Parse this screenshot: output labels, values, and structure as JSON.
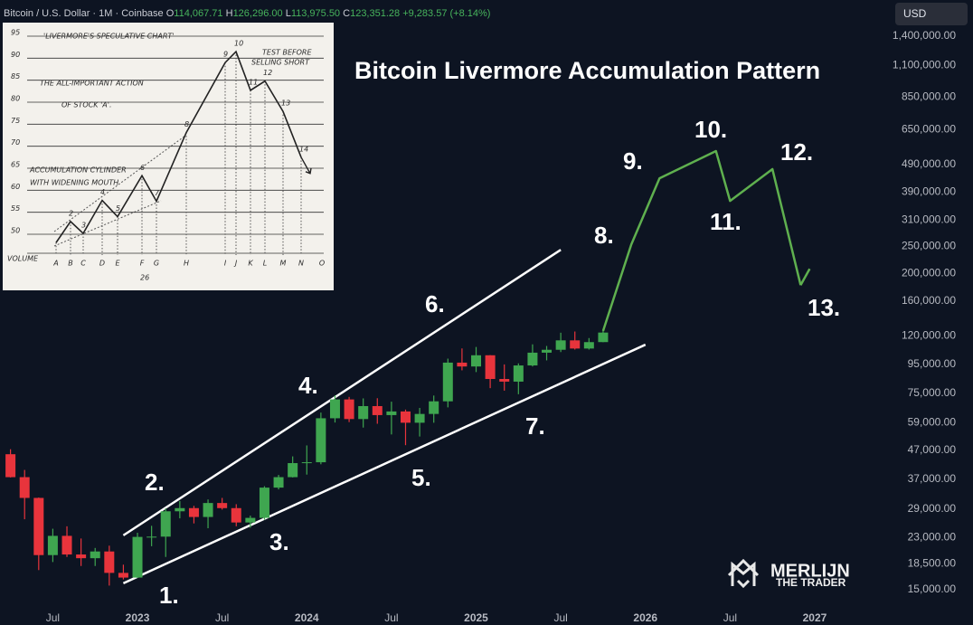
{
  "header": {
    "symbol": "Bitcoin / U.S. Dollar · 1M · Coinbase",
    "ohlc": [
      {
        "key": "O",
        "text": "114,067.71"
      },
      {
        "key": "H",
        "text": "126,296.00"
      },
      {
        "key": "L",
        "text": "113,975.50"
      },
      {
        "key": "C",
        "text": "123,351.28"
      }
    ],
    "change": "+9,283.57 (+8.14%)",
    "currency": "USD"
  },
  "chart_data": {
    "type": "candlestick",
    "title": "Bitcoin Livermore Accumulation Pattern",
    "log_scale": true,
    "grid": false,
    "up_color": "#3fa650",
    "down_color": "#e8343c",
    "x": [
      "2022-04",
      "2022-05",
      "2022-06",
      "2022-07",
      "2022-08",
      "2022-09",
      "2022-10",
      "2022-11",
      "2022-12",
      "2023-01",
      "2023-02",
      "2023-03",
      "2023-04",
      "2023-05",
      "2023-06",
      "2023-07",
      "2023-08",
      "2023-09",
      "2023-10",
      "2023-11",
      "2023-12",
      "2024-01",
      "2024-02",
      "2024-03",
      "2024-04",
      "2024-05",
      "2024-06",
      "2024-07",
      "2024-08",
      "2024-09",
      "2024-10",
      "2024-11",
      "2024-12",
      "2025-01",
      "2025-02",
      "2025-03",
      "2025-04",
      "2025-05",
      "2025-06",
      "2025-07",
      "2025-08",
      "2025-09",
      "2025-10"
    ],
    "open": [
      45500,
      37700,
      31800,
      19900,
      23300,
      20000,
      19400,
      20500,
      17200,
      16550,
      23100,
      23150,
      28500,
      29250,
      27200,
      30500,
      29250,
      26000,
      27000,
      34600,
      37700,
      42300,
      42600,
      61100,
      71300,
      60700,
      67500,
      62700,
      64600,
      58900,
      63300,
      70200,
      96400,
      93400,
      102400,
      84300,
      82500,
      94200,
      104600,
      107100,
      115700,
      108200,
      114067.71
    ],
    "high": [
      47400,
      40000,
      31900,
      24700,
      25200,
      22800,
      21100,
      21500,
      18400,
      23900,
      25300,
      29200,
      31000,
      29800,
      31400,
      31800,
      30200,
      27500,
      35000,
      38400,
      44700,
      48900,
      64000,
      73800,
      72800,
      71900,
      72000,
      70000,
      65600,
      66500,
      73600,
      99600,
      108300,
      109600,
      102500,
      95000,
      95800,
      112000,
      110500,
      123200,
      124400,
      117900,
      126296
    ],
    "low": [
      37600,
      26700,
      17600,
      18800,
      19600,
      18200,
      18200,
      15500,
      16300,
      16500,
      21400,
      19600,
      26900,
      25800,
      24800,
      28900,
      25200,
      24900,
      26600,
      34100,
      37600,
      38500,
      41900,
      59000,
      59200,
      56600,
      58400,
      53500,
      49000,
      52600,
      58900,
      66800,
      90500,
      89200,
      78200,
      76600,
      74400,
      93400,
      98200,
      105100,
      107300,
      107300,
      113975.5
    ],
    "close": [
      37700,
      31800,
      19900,
      23300,
      20000,
      19400,
      20500,
      17200,
      16550,
      23100,
      23150,
      28500,
      29250,
      27200,
      30500,
      29250,
      26000,
      27000,
      34600,
      37700,
      42300,
      42600,
      61100,
      71300,
      60700,
      67500,
      62700,
      64600,
      58900,
      63300,
      70200,
      96400,
      93400,
      102400,
      84300,
      82500,
      94200,
      104600,
      107100,
      115700,
      108200,
      114050,
      123351.28
    ],
    "projection": {
      "color": "#5fb04f",
      "x": [
        "2025-10",
        "2025-12",
        "2026-02",
        "2026-06",
        "2026-07",
        "2026-10",
        "2026-12"
      ],
      "values": [
        125000,
        254000,
        437000,
        546000,
        363000,
        471000,
        182000
      ]
    },
    "trendlines": [
      {
        "color": "#ffffff",
        "x": [
          "2022-12",
          "2025-07"
        ],
        "values": [
          23400,
          243000
        ]
      },
      {
        "color": "#ffffff",
        "x": [
          "2022-12",
          "2026-01"
        ],
        "values": [
          15800,
          111700
        ]
      }
    ],
    "annotations": [
      "1.",
      "2.",
      "3.",
      "4.",
      "5.",
      "6.",
      "7.",
      "8.",
      "9.",
      "10.",
      "11.",
      "12.",
      "13."
    ],
    "xlim": [
      "2022-03",
      "2027-06"
    ],
    "xticks": [
      {
        "value": "2022-07",
        "label": "Jul"
      },
      {
        "value": "2023-01",
        "label": "2023"
      },
      {
        "value": "2023-07",
        "label": "Jul"
      },
      {
        "value": "2024-01",
        "label": "2024"
      },
      {
        "value": "2024-07",
        "label": "Jul"
      },
      {
        "value": "2025-01",
        "label": "2025"
      },
      {
        "value": "2025-07",
        "label": "Jul"
      },
      {
        "value": "2026-01",
        "label": "2026"
      },
      {
        "value": "2026-07",
        "label": "Jul"
      },
      {
        "value": "2027-01",
        "label": "2027"
      }
    ],
    "ylim": [
      11220,
      1884000
    ],
    "yticks": [
      {
        "value": 1400000,
        "label": "1,400,000.00"
      },
      {
        "value": 1100000,
        "label": "1,100,000.00"
      },
      {
        "value": 850000,
        "label": "850,000.00"
      },
      {
        "value": 650000,
        "label": "650,000.00"
      },
      {
        "value": 490000,
        "label": "490,000.00"
      },
      {
        "value": 390000,
        "label": "390,000.00"
      },
      {
        "value": 310000,
        "label": "310,000.00"
      },
      {
        "value": 250000,
        "label": "250,000.00"
      },
      {
        "value": 200000,
        "label": "200,000.00"
      },
      {
        "value": 160000,
        "label": "160,000.00"
      },
      {
        "value": 120000,
        "label": "120,000.00"
      },
      {
        "value": 95000,
        "label": "95,000.00"
      },
      {
        "value": 75000,
        "label": "75,000.00"
      },
      {
        "value": 59000,
        "label": "59,000.00"
      },
      {
        "value": 47000,
        "label": "47,000.00"
      },
      {
        "value": 37000,
        "label": "37,000.00"
      },
      {
        "value": 29000,
        "label": "29,000.00"
      },
      {
        "value": 23000,
        "label": "23,000.00"
      },
      {
        "value": 18500,
        "label": "18,500.00"
      },
      {
        "value": 15000,
        "label": "15,000.00"
      }
    ]
  },
  "inset": {
    "texts": [
      "'LIVERMORE'S SPECULATIVE CHART'",
      "THE ALL-IMPORTANT ACTION",
      "OF STOCK 'A'.",
      "TEST BEFORE",
      "SELLING SHORT",
      "ACCUMULATION CYLINDER",
      "WITH WIDENING MOUTH",
      "26"
    ],
    "volume_label": "VOLUME",
    "categories": [
      "A",
      "B",
      "C",
      "D",
      "E",
      "F",
      "G",
      "H",
      "I",
      "J",
      "K",
      "L",
      "M",
      "N",
      "O"
    ],
    "values": [
      48.1,
      52.9,
      50.2,
      57.7,
      54,
      63.3,
      57.5,
      73.1,
      89,
      91.5,
      82.7,
      84.8,
      77.9,
      67.5,
      null
    ],
    "point_labels": [
      null,
      "2",
      "3",
      "4",
      "5",
      "6",
      "7",
      "8",
      "9",
      "10",
      "11",
      "12",
      "13",
      "14",
      null
    ],
    "ylim": [
      50,
      95
    ],
    "yticks": [
      50,
      55,
      60,
      65,
      70,
      75,
      80,
      85,
      90,
      95
    ]
  },
  "watermark": {
    "name": "MERLIJN",
    "subtitle": "THE TRADER"
  }
}
